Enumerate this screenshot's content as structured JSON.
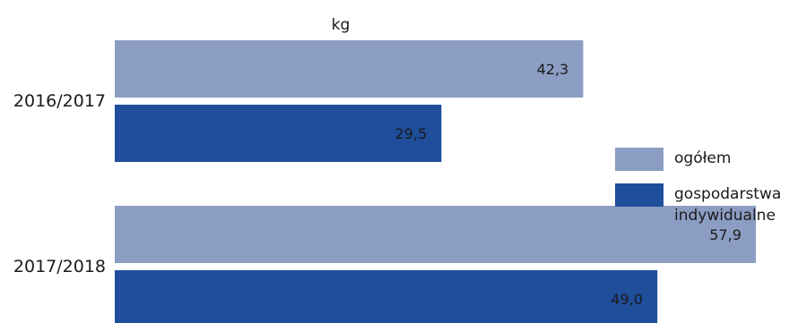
{
  "chart_data": {
    "type": "bar",
    "orientation": "horizontal",
    "unit": "kg",
    "categories": [
      "2016/2017",
      "2017/2018"
    ],
    "series": [
      {
        "name": "ogółem",
        "color": "#8c9dc3",
        "values": [
          42.3,
          57.9
        ],
        "labels": [
          "42,3",
          "57,9"
        ]
      },
      {
        "name": "gospodarstwa indywidualne",
        "color": "#1f4e9b",
        "values": [
          29.5,
          49.0
        ],
        "labels": [
          "29,5",
          "49,0"
        ]
      }
    ],
    "legend": {
      "position": "right",
      "items": [
        {
          "color": "#8c9dc3",
          "lines": [
            "ogółem"
          ]
        },
        {
          "color": "#1f4e9b",
          "lines": [
            "gospodarstwa",
            "indywidualne"
          ]
        }
      ]
    },
    "grid": false
  }
}
